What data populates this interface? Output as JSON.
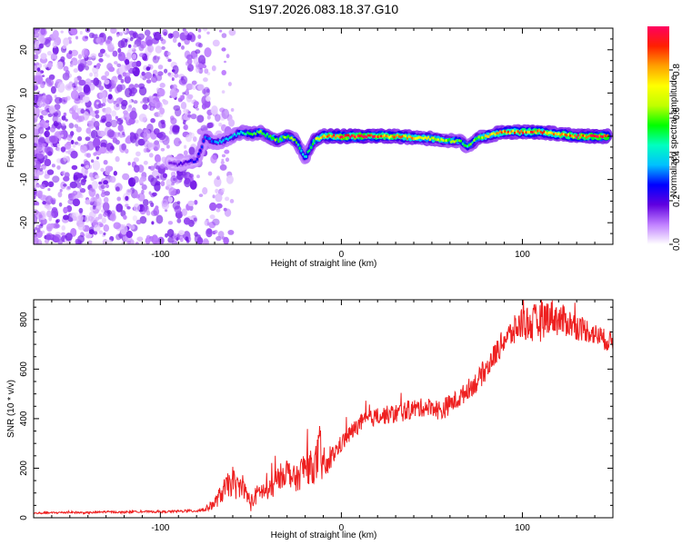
{
  "title": "S197.2026.083.18.37.G10",
  "chart_data": [
    {
      "type": "heatmap",
      "id": "spectrogram",
      "xlabel": "Height of straight line (km)",
      "ylabel": "Frequency (Hz)",
      "xlim": [
        -170,
        150
      ],
      "ylim": [
        -25,
        25
      ],
      "xticks": [
        -100,
        0,
        100
      ],
      "yticks": [
        -20,
        -10,
        0,
        10,
        20
      ],
      "colorbar": {
        "label": "Normalized spectral amplitude",
        "range": [
          0,
          1
        ],
        "ticks": [
          "0.0",
          "0.2",
          "0.4",
          "0.6",
          "0.8"
        ],
        "colors": [
          "#ffffff",
          "#c080ff",
          "#6000e0",
          "#0000ff",
          "#00c0ff",
          "#00ffc0",
          "#00ff00",
          "#c0ff00",
          "#ffff00",
          "#ffa000",
          "#ff2000",
          "#ff0060"
        ]
      },
      "noise_region_km": [
        -170,
        -60
      ],
      "ridge": {
        "x_km": [
          -95,
          -90,
          -85,
          -80,
          -75,
          -70,
          -65,
          -60,
          -55,
          -50,
          -45,
          -40,
          -35,
          -30,
          -25,
          -20,
          -15,
          -10,
          -5,
          0,
          10,
          20,
          30,
          40,
          50,
          60,
          65,
          70,
          75,
          80,
          90,
          100,
          110,
          120,
          130,
          140,
          148
        ],
        "f_hz": [
          -6,
          -6.5,
          -6,
          -5.5,
          0,
          -1.5,
          -1,
          0,
          1,
          0.5,
          1,
          0,
          -1,
          0,
          -1,
          -5,
          -1,
          0,
          0,
          0,
          0,
          0,
          0,
          -0.3,
          -0.5,
          -1,
          -1,
          -2.5,
          -0.5,
          0,
          1,
          1,
          1,
          0.5,
          0,
          0,
          0
        ],
        "amp": [
          0.15,
          0.18,
          0.2,
          0.25,
          0.3,
          0.32,
          0.35,
          0.38,
          0.45,
          0.5,
          0.55,
          0.55,
          0.6,
          0.6,
          0.55,
          0.4,
          0.6,
          0.75,
          0.85,
          0.95,
          0.95,
          0.9,
          0.8,
          0.75,
          0.7,
          0.6,
          0.55,
          0.5,
          0.6,
          0.7,
          0.8,
          0.85,
          0.85,
          0.8,
          0.9,
          0.95,
          0.95
        ]
      }
    },
    {
      "type": "line",
      "id": "snr",
      "xlabel": "Height of straight line (km)",
      "ylabel": "SNR (10 * v/v)",
      "xlim": [
        -170,
        150
      ],
      "ylim": [
        0,
        880
      ],
      "xticks": [
        -100,
        0,
        100
      ],
      "yticks": [
        0,
        200,
        400,
        600,
        800
      ],
      "color": "#ee2020",
      "series": [
        {
          "name": "SNR",
          "x": [
            -170,
            -160,
            -150,
            -140,
            -130,
            -120,
            -110,
            -100,
            -90,
            -80,
            -75,
            -70,
            -65,
            -60,
            -58,
            -55,
            -50,
            -45,
            -40,
            -35,
            -30,
            -25,
            -20,
            -15,
            -12,
            -10,
            -8,
            -5,
            0,
            10,
            20,
            30,
            40,
            50,
            55,
            60,
            65,
            70,
            75,
            80,
            85,
            90,
            95,
            100,
            105,
            110,
            115,
            120,
            125,
            130,
            135,
            140,
            145,
            150
          ],
          "y": [
            18,
            20,
            22,
            20,
            24,
            22,
            25,
            24,
            26,
            28,
            35,
            60,
            110,
            150,
            120,
            130,
            60,
            110,
            100,
            160,
            190,
            150,
            210,
            200,
            260,
            220,
            200,
            250,
            300,
            380,
            410,
            420,
            440,
            450,
            430,
            460,
            480,
            520,
            550,
            600,
            660,
            720,
            750,
            790,
            780,
            790,
            820,
            800,
            790,
            770,
            760,
            740,
            720,
            710
          ],
          "amplitude": [
            4,
            4,
            4,
            4,
            4,
            4,
            4,
            4,
            5,
            6,
            10,
            25,
            45,
            60,
            50,
            40,
            35,
            40,
            45,
            50,
            55,
            50,
            80,
            60,
            120,
            80,
            40,
            40,
            35,
            35,
            35,
            40,
            40,
            35,
            45,
            40,
            40,
            40,
            45,
            45,
            50,
            50,
            60,
            70,
            80,
            80,
            70,
            70,
            60,
            55,
            50,
            45,
            45,
            40
          ]
        }
      ]
    }
  ]
}
